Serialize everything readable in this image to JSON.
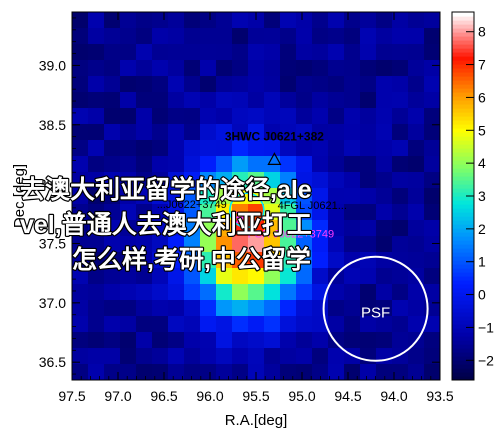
{
  "chart_data": {
    "type": "heatmap",
    "xlabel": "R.A.[deg]",
    "ylabel": "Dec.[deg]",
    "x_ticks": [
      97.5,
      97.0,
      96.5,
      96.0,
      95.5,
      95.0,
      94.5,
      94.0,
      93.5
    ],
    "y_ticks": [
      36.5,
      37.0,
      37.5,
      38.0,
      38.5,
      39.0
    ],
    "xlim": [
      97.5,
      93.5
    ],
    "ylim": [
      36.35,
      39.45
    ],
    "x_reversed": true,
    "colorbar": {
      "ticks": [
        -2,
        -1,
        0,
        1,
        2,
        3,
        4,
        5,
        6,
        7,
        8
      ],
      "range": [
        -2.6,
        8.6
      ],
      "colormap": "blue-cyan-yellow-red-white"
    },
    "hotspot": {
      "ra": 95.6,
      "dec": 37.55,
      "peak": 8.0
    },
    "sources": [
      {
        "label": "3HWC J0621+382",
        "ra": 95.3,
        "dec": 38.2,
        "marker": "triangle"
      },
      {
        "label": "4FGL J0621...",
        "ra": 95.2,
        "dec": 37.95,
        "marker": "circle"
      },
      {
        "label": "...J0622+3749",
        "ra": 95.6,
        "dec": 37.78,
        "marker": "circle-small"
      },
      {
        "label": "PSR J0622+3749",
        "ra": 95.7,
        "dec": 37.72,
        "marker": "circle-cross"
      }
    ],
    "psf_label": "PSF",
    "psf": {
      "ra": 94.2,
      "dec": 36.95
    },
    "grid": false
  },
  "overlay_text": {
    "line1": "去澳大利亚留学的途径,ale",
    "line2": "vel,普通人去澳大利亚打工",
    "line3": "怎么样,考研,中公留学"
  },
  "colors": {
    "overlay_fill": "#ffffff",
    "overlay_stroke": "#000000",
    "hwc_label": "#000000",
    "psr_label": "#ff3cff",
    "fermi_ring": "#00e6ff"
  }
}
